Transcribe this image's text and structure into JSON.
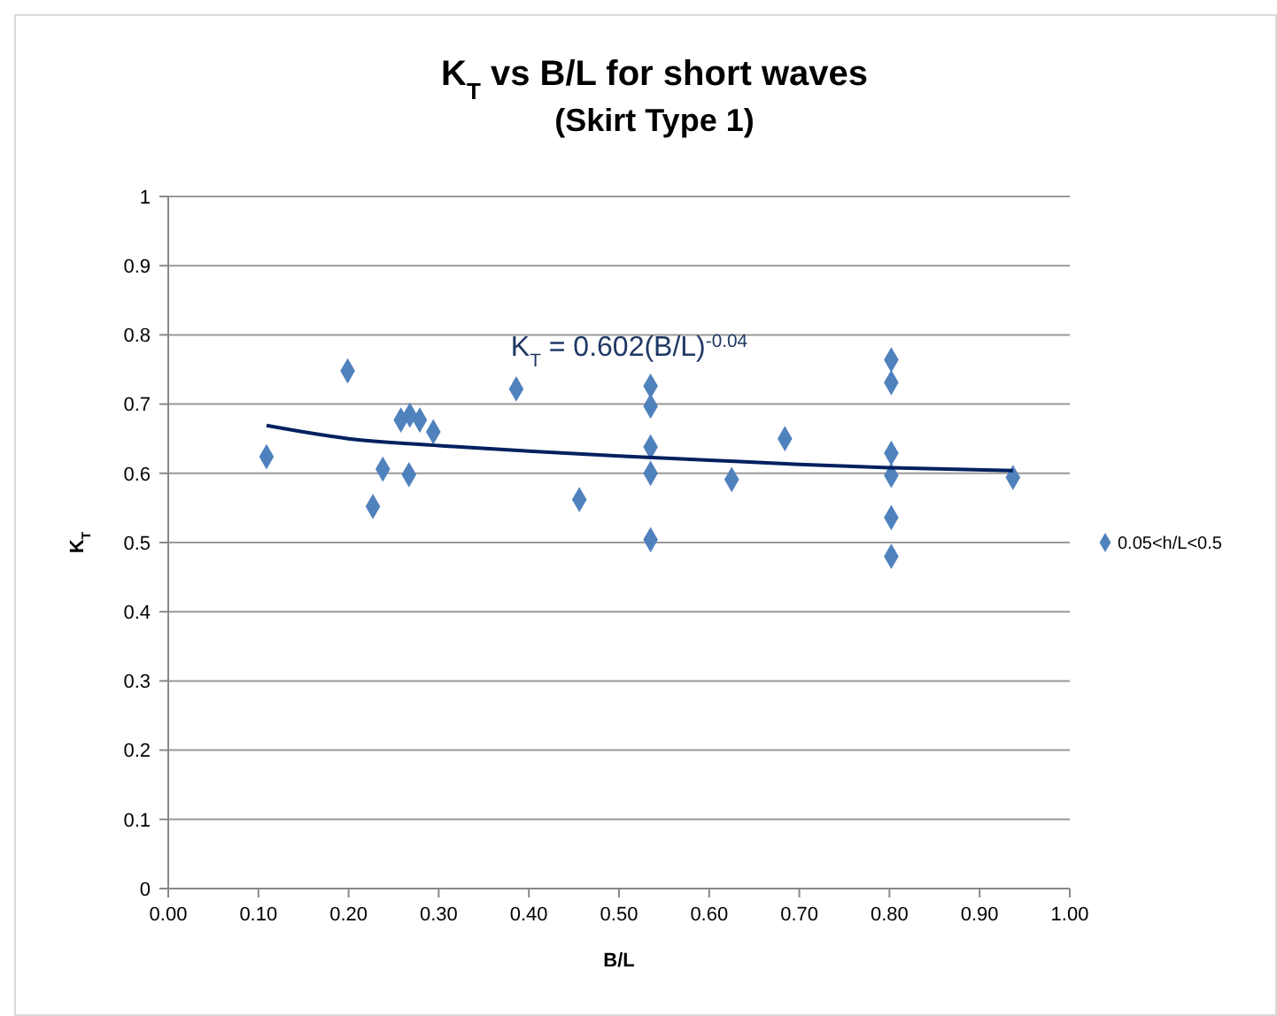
{
  "chart_data": {
    "type": "scatter",
    "title": "K$_{T}$ vs B/L for short waves",
    "subtitle": "(Skirt Type 1)",
    "xlabel": "B/L",
    "ylabel": "K$_{T}$",
    "annotations": [
      "K$_{T}$ = 0.602(B/L)$^{-0.04}$"
    ],
    "series": [
      {
        "name": "0.05<h/L<0.5",
        "color": "#4f81bd",
        "marker": "diamond",
        "x": [
          0.109,
          0.199,
          0.227,
          0.238,
          0.258,
          0.268,
          0.279,
          0.267,
          0.294,
          0.386,
          0.456,
          0.535,
          0.535,
          0.535,
          0.535,
          0.535,
          0.625,
          0.684,
          0.802,
          0.802,
          0.802,
          0.802,
          0.802,
          0.802,
          0.937
        ],
        "values": [
          0.624,
          0.748,
          0.552,
          0.606,
          0.677,
          0.684,
          0.677,
          0.598,
          0.66,
          0.722,
          0.562,
          0.726,
          0.697,
          0.638,
          0.6,
          0.504,
          0.591,
          0.65,
          0.764,
          0.731,
          0.629,
          0.597,
          0.536,
          0.48,
          0.594
        ]
      },
      {
        "type": "line",
        "color": "#002060",
        "marker": "none",
        "x": [
          0.109,
          0.2,
          0.3,
          0.4,
          0.5,
          0.6,
          0.7,
          0.8,
          0.937
        ],
        "values": [
          0.669,
          0.65,
          0.64,
          0.632,
          0.625,
          0.619,
          0.613,
          0.608,
          0.604
        ]
      }
    ],
    "xlim": [
      0,
      1
    ],
    "ylim": [
      0,
      1
    ],
    "xticks": [
      {
        "value": 0,
        "label": "0.00"
      },
      {
        "value": 0.1,
        "label": "0.10"
      },
      {
        "value": 0.2,
        "label": "0.20"
      },
      {
        "value": 0.3,
        "label": "0.30"
      },
      {
        "value": 0.4,
        "label": "0.40"
      },
      {
        "value": 0.5,
        "label": "0.50"
      },
      {
        "value": 0.6,
        "label": "0.60"
      },
      {
        "value": 0.7,
        "label": "0.70"
      },
      {
        "value": 0.8,
        "label": "0.80"
      },
      {
        "value": 0.9,
        "label": "0.90"
      },
      {
        "value": 1,
        "label": "1.00"
      }
    ],
    "yticks": [
      0,
      0.1,
      0.2,
      0.3,
      0.4,
      0.5,
      0.6,
      0.7,
      0.8,
      0.9,
      1
    ],
    "grid": "y",
    "legend": "right"
  }
}
